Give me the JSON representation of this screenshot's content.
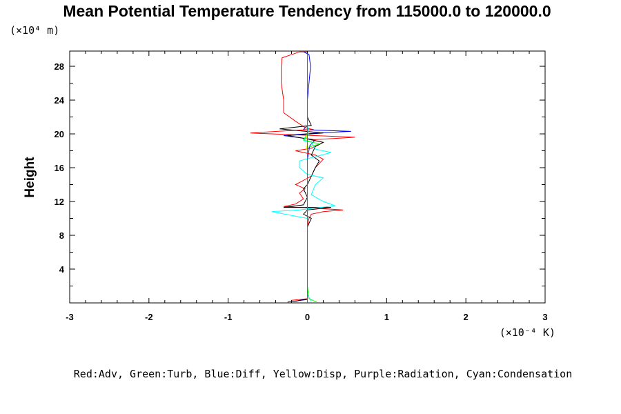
{
  "chart_data": {
    "type": "line",
    "title": "Mean Potential Temperature Tendency from 115000.0 to 120000.0",
    "ylabel": "Height",
    "y_scale_label": "(×10⁴ m)",
    "x_scale_label": "(×10⁻⁴ K)",
    "xlim": [
      -3,
      3
    ],
    "ylim": [
      0,
      29.8
    ],
    "x_ticks": [
      "-3",
      "-2",
      "-1",
      "0",
      "1",
      "2",
      "3"
    ],
    "y_ticks": [
      "4",
      "8",
      "12",
      "16",
      "20",
      "24",
      "28"
    ],
    "legend": "Red:Adv, Green:Turb, Blue:Diff, Yellow:Disp, Purple:Radiation, Cyan:Condensation",
    "series": [
      {
        "color": "#0000ff",
        "points": [
          [
            -0.15,
            0.2
          ],
          [
            0,
            0.5
          ],
          [
            0,
            9
          ],
          [
            0,
            17
          ],
          [
            0.03,
            18.6
          ],
          [
            0.1,
            19.3
          ],
          [
            -0.3,
            19.8
          ],
          [
            0.12,
            20.1
          ],
          [
            0.55,
            20.3
          ],
          [
            -0.05,
            20.5
          ],
          [
            0,
            21
          ],
          [
            0,
            24
          ],
          [
            0.02,
            26
          ],
          [
            0.04,
            28
          ],
          [
            0.02,
            29.4
          ],
          [
            -0.05,
            29.7
          ]
        ]
      },
      {
        "color": "#ff0000",
        "points": [
          [
            -0.2,
            0.3
          ],
          [
            0,
            0.5
          ],
          [
            0,
            9
          ],
          [
            0.02,
            10
          ],
          [
            0.05,
            10.5
          ],
          [
            0.2,
            10.8
          ],
          [
            0.45,
            11
          ],
          [
            0.1,
            11.2
          ],
          [
            -0.3,
            11.4
          ],
          [
            -0.15,
            11.7
          ],
          [
            -0.05,
            12.3
          ],
          [
            -0.1,
            13
          ],
          [
            -0.03,
            13.5
          ],
          [
            -0.15,
            14
          ],
          [
            -0.05,
            14.5
          ],
          [
            0.05,
            15
          ],
          [
            0.1,
            16
          ],
          [
            0.2,
            17
          ],
          [
            0.1,
            17.5
          ],
          [
            -0.15,
            18
          ],
          [
            0.05,
            18.3
          ],
          [
            0.2,
            19
          ],
          [
            0.05,
            19.3
          ],
          [
            0.6,
            19.6
          ],
          [
            -0.72,
            20.1
          ],
          [
            -0.2,
            20.4
          ],
          [
            0.08,
            20.5
          ],
          [
            -0.02,
            20.7
          ],
          [
            -0.15,
            21.5
          ],
          [
            -0.3,
            22.5
          ],
          [
            -0.3,
            24
          ],
          [
            -0.33,
            26
          ],
          [
            -0.33,
            28
          ],
          [
            -0.32,
            29
          ],
          [
            -0.1,
            29.7
          ],
          [
            0,
            29.7
          ]
        ]
      },
      {
        "color": "#000000",
        "points": [
          [
            -0.25,
            0.1
          ],
          [
            0,
            0.4
          ],
          [
            0,
            9
          ],
          [
            0.05,
            10
          ],
          [
            -0.05,
            10.5
          ],
          [
            0,
            11
          ],
          [
            0.3,
            11.3
          ],
          [
            -0.3,
            11.3
          ],
          [
            -0.05,
            11.6
          ],
          [
            0,
            12.5
          ],
          [
            -0.05,
            13.5
          ],
          [
            0,
            14
          ],
          [
            0.05,
            15
          ],
          [
            0.1,
            16
          ],
          [
            0.15,
            16.8
          ],
          [
            0.05,
            17.5
          ],
          [
            0.1,
            18.5
          ],
          [
            0.2,
            19
          ],
          [
            0,
            19.4
          ],
          [
            -0.25,
            19.8
          ],
          [
            0.2,
            20.1
          ],
          [
            -0.35,
            20.6
          ],
          [
            0.05,
            21
          ],
          [
            0,
            22
          ],
          [
            0,
            24
          ],
          [
            0,
            28
          ],
          [
            0,
            29.5
          ]
        ]
      },
      {
        "color": "#00ffff",
        "points": [
          [
            0.05,
            0.2
          ],
          [
            0,
            1
          ],
          [
            0,
            9
          ],
          [
            0,
            10
          ],
          [
            -0.45,
            10.8
          ],
          [
            -0.1,
            11
          ],
          [
            0.35,
            11.5
          ],
          [
            0.2,
            12
          ],
          [
            0.05,
            12.8
          ],
          [
            0.1,
            14
          ],
          [
            0.2,
            14.8
          ],
          [
            0,
            15.2
          ],
          [
            -0.1,
            16
          ],
          [
            -0.1,
            16.8
          ],
          [
            0.3,
            17.8
          ],
          [
            0.1,
            18.2
          ],
          [
            0.05,
            19
          ],
          [
            -0.05,
            19.2
          ],
          [
            0.02,
            20
          ],
          [
            0,
            21
          ],
          [
            0,
            24
          ],
          [
            0,
            28
          ],
          [
            0,
            29.5
          ]
        ]
      },
      {
        "color": "#00ff00",
        "points": [
          [
            0.12,
            0.1
          ],
          [
            0.02,
            0.5
          ],
          [
            0,
            2
          ],
          [
            0,
            9
          ],
          [
            0,
            18.4
          ],
          [
            0.15,
            18.8
          ],
          [
            -0.05,
            19.3
          ],
          [
            0,
            20
          ],
          [
            0,
            22
          ]
        ]
      },
      {
        "color": "#ffff00",
        "points": [
          [
            0,
            0
          ],
          [
            0,
            18
          ],
          [
            -0.02,
            19
          ],
          [
            0,
            20
          ]
        ]
      },
      {
        "color": "#ff00ff",
        "points": [
          [
            0,
            0
          ],
          [
            0,
            29.5
          ]
        ]
      }
    ]
  }
}
